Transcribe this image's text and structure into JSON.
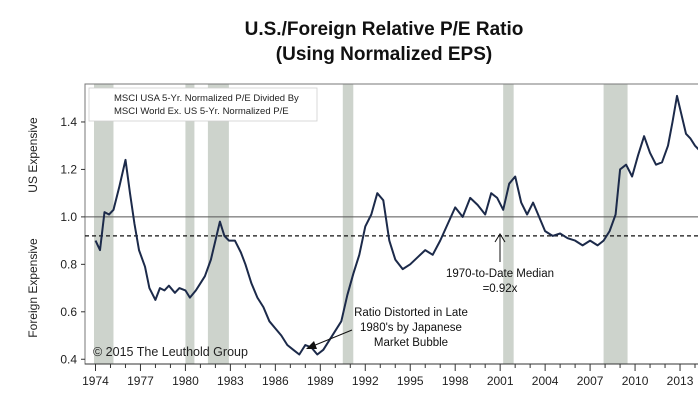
{
  "chart_data": {
    "type": "line",
    "title": "U.S./Foreign Relative P/E Ratio",
    "subtitle": "(Using Normalized EPS)",
    "ylabel_upper": "US Expensive",
    "ylabel_lower": "Foreign Expensive",
    "legend": [
      "MSCI USA 5-Yr. Normalized P/E Divided By",
      "MSCI World Ex. US 5-Yr. Normalized P/E"
    ],
    "xlim": [
      1973.3,
      2015.0
    ],
    "ylim": [
      0.38,
      1.56
    ],
    "x_ticks": [
      1974,
      1977,
      1980,
      1983,
      1986,
      1989,
      1992,
      1995,
      1998,
      2001,
      2004,
      2007,
      2010,
      2013
    ],
    "y_ticks": [
      0.4,
      0.6,
      0.8,
      1.0,
      1.2,
      1.4
    ],
    "y_tick_labels": [
      "0.4",
      "0.6",
      "0.8",
      "1.0",
      "1.2",
      "1.4"
    ],
    "reference_lines": [
      {
        "y": 1.0,
        "style": "solid"
      },
      {
        "y": 0.92,
        "style": "dashed"
      }
    ],
    "recessions": [
      [
        1973.9,
        1975.2
      ],
      [
        1980.0,
        1980.6
      ],
      [
        1981.5,
        1982.9
      ],
      [
        1990.5,
        1991.2
      ],
      [
        2001.2,
        2001.9
      ],
      [
        2007.9,
        2009.5
      ]
    ],
    "series": [
      {
        "x": [
          1974.0,
          1974.3,
          1974.6,
          1974.9,
          1975.2,
          1975.6,
          1976.0,
          1976.3,
          1976.6,
          1976.9,
          1977.3,
          1977.6,
          1978.0,
          1978.3,
          1978.6,
          1978.9,
          1979.3,
          1979.6,
          1980.0,
          1980.3,
          1980.7,
          1981.0,
          1981.3,
          1981.7,
          1982.0,
          1982.3,
          1982.6,
          1982.9,
          1983.3,
          1983.7,
          1984.0,
          1984.4,
          1984.8,
          1985.2,
          1985.6,
          1986.0,
          1986.4,
          1986.8,
          1987.2,
          1987.6,
          1988.0,
          1988.4,
          1988.8,
          1989.2,
          1989.6,
          1990.0,
          1990.4,
          1990.8,
          1991.2,
          1991.6,
          1992.0,
          1992.4,
          1992.8,
          1993.2,
          1993.6,
          1994.0,
          1994.5,
          1995.0,
          1995.5,
          1996.0,
          1996.5,
          1997.0,
          1997.5,
          1998.0,
          1998.5,
          1999.0,
          1999.5,
          2000.0,
          2000.4,
          2000.8,
          2001.2,
          2001.6,
          2002.0,
          2002.4,
          2002.8,
          2003.2,
          2003.6,
          2004.0,
          2004.5,
          2005.0,
          2005.5,
          2006.0,
          2006.5,
          2007.0,
          2007.5,
          2007.9,
          2008.3,
          2008.7,
          2009.0,
          2009.4,
          2009.8,
          2010.2,
          2010.6,
          2011.0,
          2011.4,
          2011.8,
          2012.2,
          2012.5,
          2012.8,
          2013.1,
          2013.4,
          2013.7,
          2014.0,
          2014.3,
          2014.6,
          2015.0
        ],
        "y": [
          0.9,
          0.86,
          1.02,
          1.01,
          1.03,
          1.13,
          1.24,
          1.1,
          0.97,
          0.86,
          0.79,
          0.7,
          0.65,
          0.7,
          0.69,
          0.71,
          0.68,
          0.7,
          0.69,
          0.66,
          0.69,
          0.72,
          0.75,
          0.82,
          0.9,
          0.98,
          0.92,
          0.9,
          0.9,
          0.85,
          0.8,
          0.72,
          0.66,
          0.62,
          0.56,
          0.53,
          0.5,
          0.46,
          0.44,
          0.42,
          0.46,
          0.45,
          0.42,
          0.44,
          0.48,
          0.52,
          0.56,
          0.67,
          0.76,
          0.84,
          0.96,
          1.01,
          1.1,
          1.07,
          0.9,
          0.82,
          0.78,
          0.8,
          0.83,
          0.86,
          0.84,
          0.9,
          0.97,
          1.04,
          1.0,
          1.08,
          1.05,
          1.01,
          1.1,
          1.08,
          1.03,
          1.14,
          1.17,
          1.06,
          1.01,
          1.06,
          1.0,
          0.94,
          0.92,
          0.93,
          0.91,
          0.9,
          0.88,
          0.9,
          0.88,
          0.9,
          0.94,
          1.01,
          1.2,
          1.22,
          1.17,
          1.26,
          1.34,
          1.27,
          1.22,
          1.23,
          1.3,
          1.4,
          1.51,
          1.43,
          1.35,
          1.33,
          1.3,
          1.28,
          1.38,
          1.29
        ]
      }
    ],
    "annotations": [
      {
        "lines": [
          "1970-to-Date Median",
          "=0.92x"
        ]
      },
      {
        "lines": [
          "Ratio Distorted in Late",
          "1980's by Japanese",
          "Market Bubble"
        ]
      }
    ],
    "copyright": "© 2015 The Leuthold Group",
    "grid": false,
    "legend_position": "top-left"
  }
}
